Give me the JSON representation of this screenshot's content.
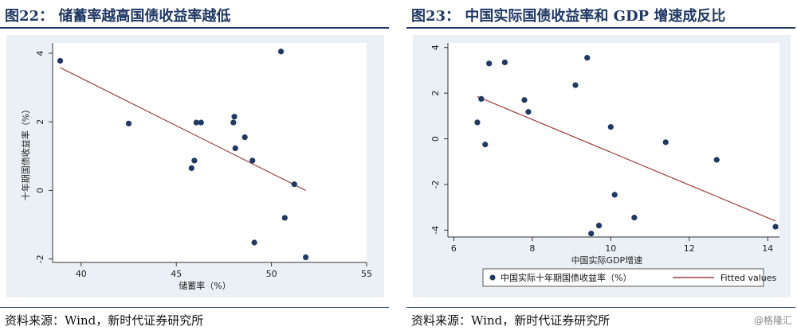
{
  "left": {
    "title": "图22：  储蓄率越高国债收益率越低",
    "source": "资料来源：Wind，新时代证券研究所"
  },
  "right": {
    "title": "图23：  中国实际国债收益率和 GDP 增速成反比",
    "source": "资料来源：Wind，新时代证券研究所"
  },
  "watermark": "@格隆汇",
  "colors": {
    "point": "#1f3864",
    "fit": "#a0403f",
    "plot_bg": "#ffffff",
    "frame_bg": "#eaf0f5"
  },
  "chart_data": [
    {
      "type": "scatter",
      "xlabel": "储蓄率（%）",
      "ylabel": "十年期国债收益率（%）",
      "xlim": [
        38.5,
        55
      ],
      "ylim": [
        -2.1,
        4.3
      ],
      "xticks": [
        40,
        45,
        50,
        55
      ],
      "yticks": [
        -2,
        0,
        2,
        4
      ],
      "grid": false,
      "series": [
        {
          "points": [
            [
              38.9,
              3.78
            ],
            [
              42.5,
              1.95
            ],
            [
              45.8,
              0.65
            ],
            [
              45.95,
              0.87
            ],
            [
              46.05,
              1.98
            ],
            [
              46.3,
              1.98
            ],
            [
              48.0,
              1.98
            ],
            [
              48.05,
              2.15
            ],
            [
              48.1,
              1.23
            ],
            [
              48.6,
              1.55
            ],
            [
              49.0,
              0.87
            ],
            [
              49.1,
              -1.52
            ],
            [
              50.5,
              4.05
            ],
            [
              50.7,
              -0.8
            ],
            [
              51.2,
              0.18
            ],
            [
              51.8,
              -1.95
            ]
          ]
        }
      ],
      "fit": {
        "x": [
          38.9,
          51.8
        ],
        "y": [
          3.58,
          0.0
        ]
      }
    },
    {
      "type": "scatter",
      "xlabel": "中国实际GDP增速",
      "xlim": [
        5.85,
        14.3
      ],
      "ylim": [
        -4.3,
        4.2
      ],
      "xticks": [
        6,
        8,
        10,
        12,
        14
      ],
      "yticks": [
        -4,
        -2,
        0,
        2,
        4
      ],
      "grid": false,
      "legend_position": "bottom",
      "series": [
        {
          "name": "中国实际十年期国债收益率（%）",
          "points": [
            [
              6.6,
              0.72
            ],
            [
              6.7,
              1.75
            ],
            [
              6.8,
              -0.25
            ],
            [
              6.9,
              3.3
            ],
            [
              7.3,
              3.35
            ],
            [
              7.8,
              1.7
            ],
            [
              7.9,
              1.18
            ],
            [
              9.1,
              2.35
            ],
            [
              9.4,
              3.55
            ],
            [
              9.5,
              -4.15
            ],
            [
              9.7,
              -3.8
            ],
            [
              10.0,
              0.52
            ],
            [
              10.1,
              -2.45
            ],
            [
              10.6,
              -3.45
            ],
            [
              11.4,
              -0.15
            ],
            [
              12.7,
              -0.92
            ],
            [
              14.2,
              -3.85
            ]
          ]
        }
      ],
      "fit": {
        "name": "Fitted values",
        "x": [
          6.6,
          14.2
        ],
        "y": [
          1.85,
          -3.6
        ]
      }
    }
  ]
}
